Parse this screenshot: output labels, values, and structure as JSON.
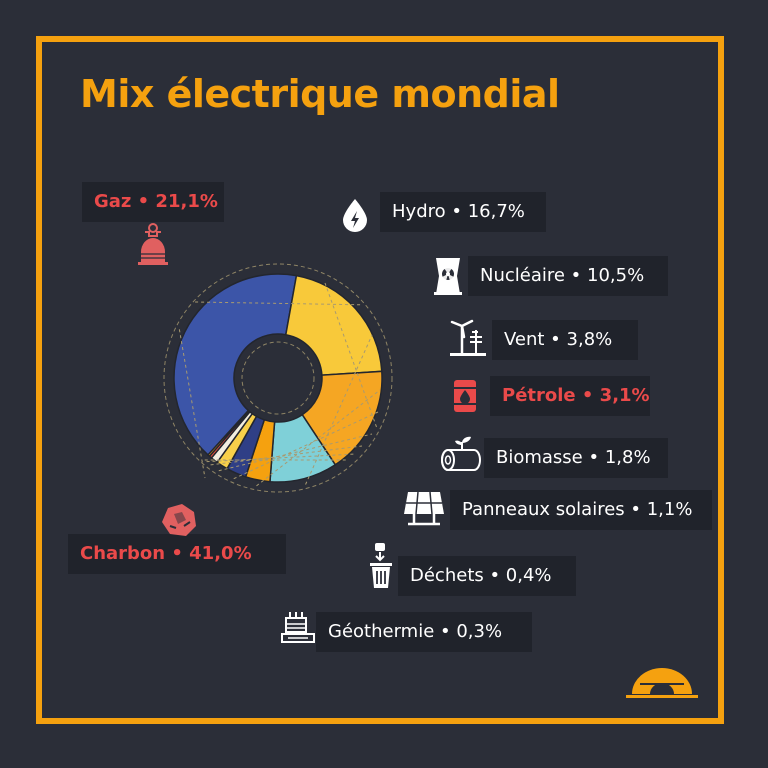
{
  "title": "Mix électrique mondial",
  "colors": {
    "background": "#2b2e38",
    "frame": "#f5a10f",
    "title": "#f5a10f",
    "highlight": "#ea4a4a",
    "label_bg": "#20232b"
  },
  "chart_data": {
    "type": "pie",
    "variant": "donut",
    "unit": "%",
    "slices": [
      {
        "label": "Charbon",
        "value": 41.0,
        "display": "Charbon • 41,0%",
        "color": "#3c55a8",
        "highlight": true,
        "icon": "coal-icon"
      },
      {
        "label": "Gaz",
        "value": 21.1,
        "display": "Gaz • 21,1%",
        "color": "#f8c93a",
        "highlight": true,
        "icon": "gas-icon"
      },
      {
        "label": "Hydro",
        "value": 16.7,
        "display": "Hydro • 16,7%",
        "color": "#f5a623",
        "highlight": false,
        "icon": "hydro-icon"
      },
      {
        "label": "Nucléaire",
        "value": 10.5,
        "display": "Nucléaire • 10,5%",
        "color": "#7fd0d8",
        "highlight": false,
        "icon": "nuclear-icon"
      },
      {
        "label": "Vent",
        "value": 3.8,
        "display": "Vent • 3,8%",
        "color": "#f5a10f",
        "highlight": false,
        "icon": "wind-icon"
      },
      {
        "label": "Pétrole",
        "value": 3.1,
        "display": "Pétrole • 3,1%",
        "color": "#2f3f86",
        "highlight": true,
        "icon": "oil-barrel-icon"
      },
      {
        "label": "Biomasse",
        "value": 1.8,
        "display": "Biomasse • 1,8%",
        "color": "#f8d04a",
        "highlight": false,
        "icon": "biomass-icon"
      },
      {
        "label": "Panneaux solaires",
        "value": 1.1,
        "display": "Panneaux solaires • 1,1%",
        "color": "#f2eee0",
        "highlight": false,
        "icon": "solar-panel-icon"
      },
      {
        "label": "Déchets",
        "value": 0.4,
        "display": "Déchets • 0,4%",
        "color": "#e8503c",
        "highlight": false,
        "icon": "waste-bin-icon"
      },
      {
        "label": "Géothermie",
        "value": 0.3,
        "display": "Géothermie  • 0,3%",
        "color": "#f5a10f",
        "highlight": false,
        "icon": "geothermal-icon"
      }
    ]
  },
  "logo": "brand-logo-icon"
}
